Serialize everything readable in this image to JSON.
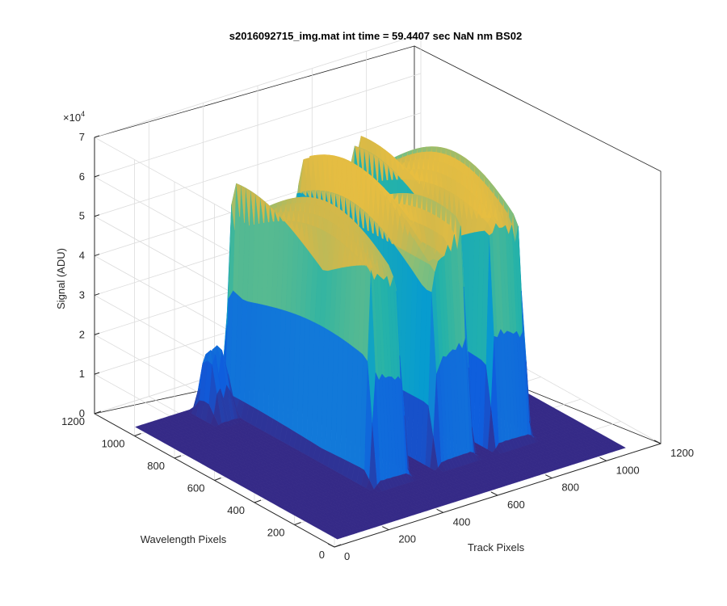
{
  "chart_data": {
    "type": "surface",
    "title": "s2016092715_img.mat int time = 59.4407 sec  NaN nm BS02",
    "xlabel": "Track Pixels",
    "ylabel": "Wavelength Pixels",
    "zlabel": "Signal (ADU)",
    "z_exponent_label": "×10",
    "z_exponent_power": "4",
    "x_ticks": [
      "0",
      "200",
      "400",
      "600",
      "800",
      "1000",
      "1200"
    ],
    "y_ticks": [
      "0",
      "200",
      "400",
      "600",
      "800",
      "1000",
      "1200"
    ],
    "z_ticks": [
      "0",
      "1",
      "2",
      "3",
      "4",
      "5",
      "6",
      "7"
    ],
    "xlim": [
      0,
      1200
    ],
    "ylim": [
      0,
      1200
    ],
    "zlim": [
      0,
      70000
    ],
    "grid": true,
    "colormap": "parula",
    "colors": {
      "low": "#352a87",
      "mid_blue": "#1a6fdf",
      "teal": "#26b1a6",
      "orange": "#f5b83e",
      "top": "#f9fb0e"
    },
    "ridges": [
      {
        "x_range": [
          330,
          480
        ],
        "y_range": [
          250,
          1050
        ],
        "peak_value": 60000
      },
      {
        "x_range": [
          560,
          720
        ],
        "y_range": [
          250,
          1050
        ],
        "peak_value": 63000
      },
      {
        "x_range": [
          770,
          930
        ],
        "y_range": [
          250,
          1050
        ],
        "peak_value": 63000
      }
    ],
    "secondary_bump": {
      "x_range": [
        230,
        330
      ],
      "y_range": [
        900,
        1050
      ],
      "peak_value": 18000
    },
    "baseline_value": 0
  }
}
